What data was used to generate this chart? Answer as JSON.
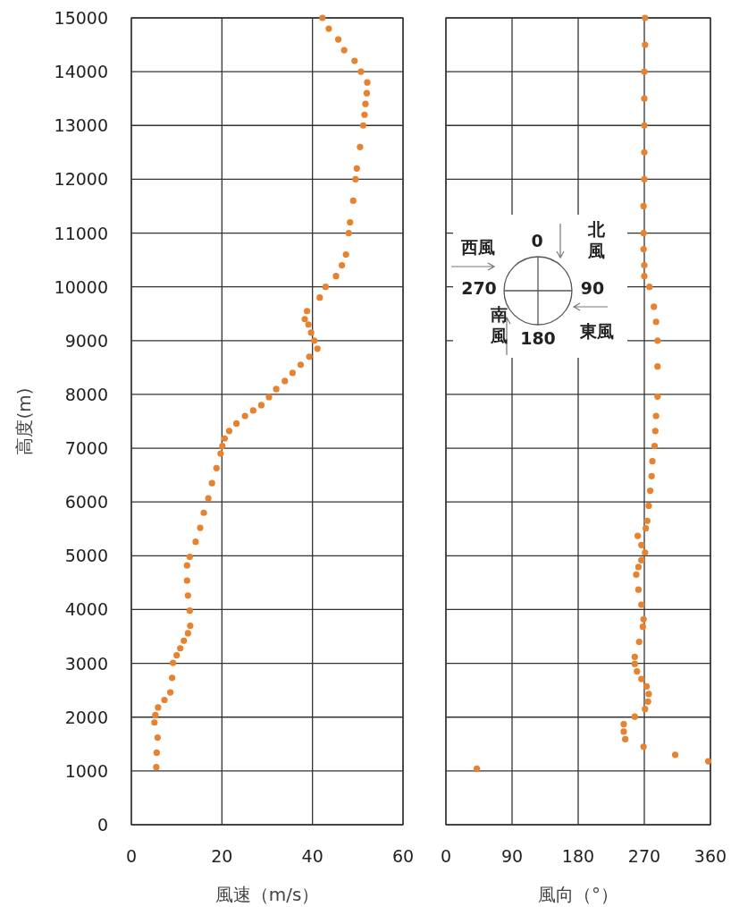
{
  "chart_data": [
    {
      "type": "scatter",
      "xlabel": "風速（m/s）",
      "ylabel": "高度(m)",
      "xlim": [
        0,
        60
      ],
      "xticks": [
        0,
        20,
        40,
        60
      ],
      "ylim": [
        0,
        15000
      ],
      "yticks": [
        0,
        1000,
        2000,
        3000,
        4000,
        5000,
        6000,
        7000,
        8000,
        9000,
        10000,
        11000,
        12000,
        13000,
        14000,
        15000
      ],
      "grid": true,
      "marker": "circle",
      "series": [
        {
          "color": "#e8822f",
          "x": [
            42.2,
            43.6,
            45.7,
            47,
            49.3,
            50.7,
            52.1,
            52,
            51.7,
            51.5,
            51.2,
            50.5,
            49.8,
            49.5,
            49,
            48.3,
            48,
            47.4,
            46.5,
            45.2,
            42.9,
            41.6,
            38.8,
            38.3,
            39.1,
            39.7,
            40.4,
            41.1,
            39.3,
            37.4,
            35.6,
            33.9,
            32,
            30.4,
            28.7,
            26.9,
            25.1,
            23.2,
            21.6,
            20.6,
            20.1,
            19.7,
            18.8,
            17.8,
            17,
            16,
            15.2,
            14.2,
            12.9,
            12.3,
            12.3,
            12.5,
            12.9,
            13,
            12.5,
            11.6,
            10.8,
            10,
            9.2,
            9,
            8.6,
            7.3,
            5.9,
            5.3,
            5.1,
            5.8,
            5.6,
            5.5
          ],
          "values": [
            15000,
            14800,
            14600,
            14400,
            14200,
            14000,
            13800,
            13600,
            13400,
            13200,
            13000,
            12600,
            12200,
            12000,
            11600,
            11200,
            11000,
            10600,
            10400,
            10200,
            10000,
            9800,
            9550,
            9400,
            9300,
            9150,
            9000,
            8850,
            8700,
            8550,
            8400,
            8250,
            8100,
            7950,
            7800,
            7700,
            7600,
            7460,
            7320,
            7180,
            7040,
            6900,
            6630,
            6350,
            6070,
            5800,
            5520,
            5260,
            4980,
            4820,
            4540,
            4260,
            3980,
            3700,
            3560,
            3420,
            3280,
            3150,
            3010,
            2730,
            2460,
            2320,
            2180,
            2040,
            1900,
            1620,
            1340,
            1070
          ]
        }
      ]
    },
    {
      "type": "scatter",
      "xlabel": "風向（°）",
      "xlim": [
        0,
        360
      ],
      "xticks": [
        0,
        90,
        180,
        270,
        360
      ],
      "ylim": [
        0,
        15000
      ],
      "yticks": [
        0,
        1000,
        2000,
        3000,
        4000,
        5000,
        6000,
        7000,
        8000,
        9000,
        10000,
        11000,
        12000,
        13000,
        14000,
        15000
      ],
      "tick_labels": "x",
      "grid": true,
      "marker": "circle",
      "annotations": [
        "西風",
        "0",
        "北風",
        "270",
        "90",
        "南風",
        "180",
        "東風"
      ],
      "series": [
        {
          "color": "#e8822f",
          "x": [
            271,
            271,
            270,
            270,
            270,
            270,
            270,
            269,
            269,
            269,
            270,
            270,
            277,
            283,
            286,
            288,
            288,
            288,
            286,
            285,
            284,
            281,
            280,
            278,
            276,
            274,
            272,
            261,
            266,
            271,
            266,
            262,
            259,
            262,
            266,
            269,
            268,
            263,
            257,
            257,
            260,
            266,
            273,
            276,
            275,
            271,
            257,
            242,
            242,
            244,
            269,
            312,
            357,
            42
          ],
          "values": [
            15000,
            14500,
            14000,
            13500,
            13000,
            12500,
            12000,
            11500,
            11000,
            10700,
            10400,
            10200,
            10000,
            9630,
            9350,
            9000,
            8520,
            7960,
            7600,
            7320,
            7040,
            6760,
            6480,
            6210,
            5930,
            5650,
            5510,
            5370,
            5200,
            5060,
            4920,
            4790,
            4650,
            4370,
            4090,
            3820,
            3680,
            3400,
            3120,
            2990,
            2850,
            2710,
            2570,
            2430,
            2290,
            2150,
            2010,
            1870,
            1730,
            1590,
            1450,
            1300,
            1180,
            1040
          ]
        }
      ]
    }
  ]
}
